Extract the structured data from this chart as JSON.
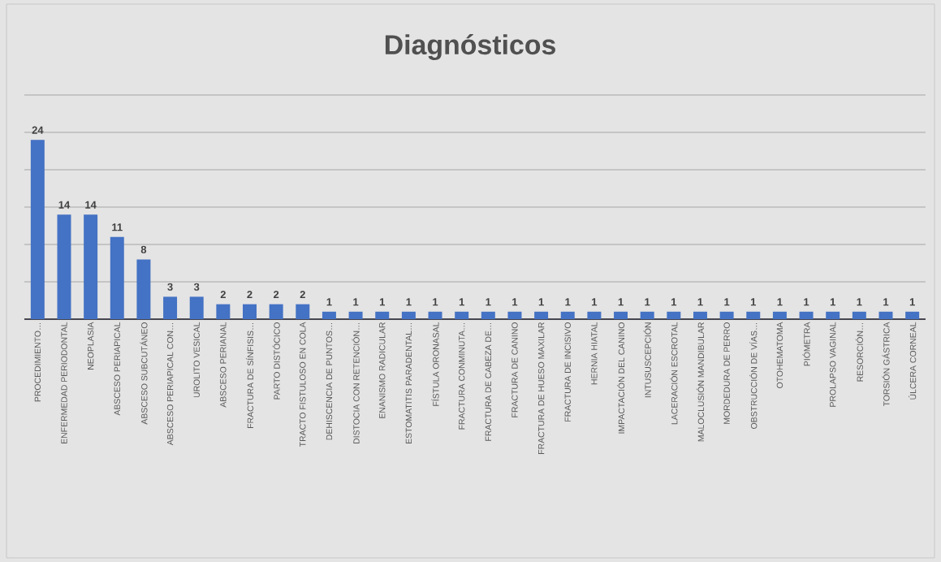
{
  "chart_data": {
    "type": "bar",
    "title": "Diagnósticos",
    "categories": [
      "PROCEDIMIENTO…",
      "ENFERMEDAD PERIODONTAL",
      "NEOPLASIA",
      "ABSCESO PERIAPICAL",
      "ABSCESO SUBCUTÁNEO",
      "ABSCESO PERIAPICAL CON…",
      "UROLITO VESICAL",
      "ABSCESO PERIANAL",
      "FRACTURA DE SÍNFISIS…",
      "PARTO DISTÓCICO",
      "TRACTO FISTULOSO EN COLA",
      "DEHISCENCIA DE PUNTOS…",
      "DISTOCIA CON RETENCIÓN…",
      "ENANISMO RADICULAR",
      "ESTOMATITIS PARADENTAL…",
      "FÍSTULA ORONASAL",
      "FRACTURA CONMINUTA…",
      "FRACTURA DE CABEZA DE…",
      "FRACTURA DE CANINO",
      "FRACTURA DE HUESO MAXILAR",
      "FRACTURA DE INCISIVO",
      "HERNIA HIATAL",
      "IMPACTACIÓN DEL CANINO",
      "INTUSUSCEPCIÓN",
      "LACERACIÓN ESCROTAL",
      "MALOCLUSIÓN MANDIBULAR",
      "MORDEDURA DE PERRO",
      "OBSTRUCCIÓN DE VÍAS…",
      "OTOHEMATOMA",
      "PIÓMETRA",
      "PROLAPSO VAGINAL",
      "RESORCIÓN…",
      "TORSIÓN GÁSTRICA",
      "ÚLCERA CORNEAL"
    ],
    "values": [
      24,
      14,
      14,
      11,
      8,
      3,
      3,
      2,
      2,
      2,
      2,
      1,
      1,
      1,
      1,
      1,
      1,
      1,
      1,
      1,
      1,
      1,
      1,
      1,
      1,
      1,
      1,
      1,
      1,
      1,
      1,
      1,
      1,
      1
    ],
    "color": "#4472c4",
    "tick_labels": "x",
    "grid": "y",
    "data_labels": true
  }
}
